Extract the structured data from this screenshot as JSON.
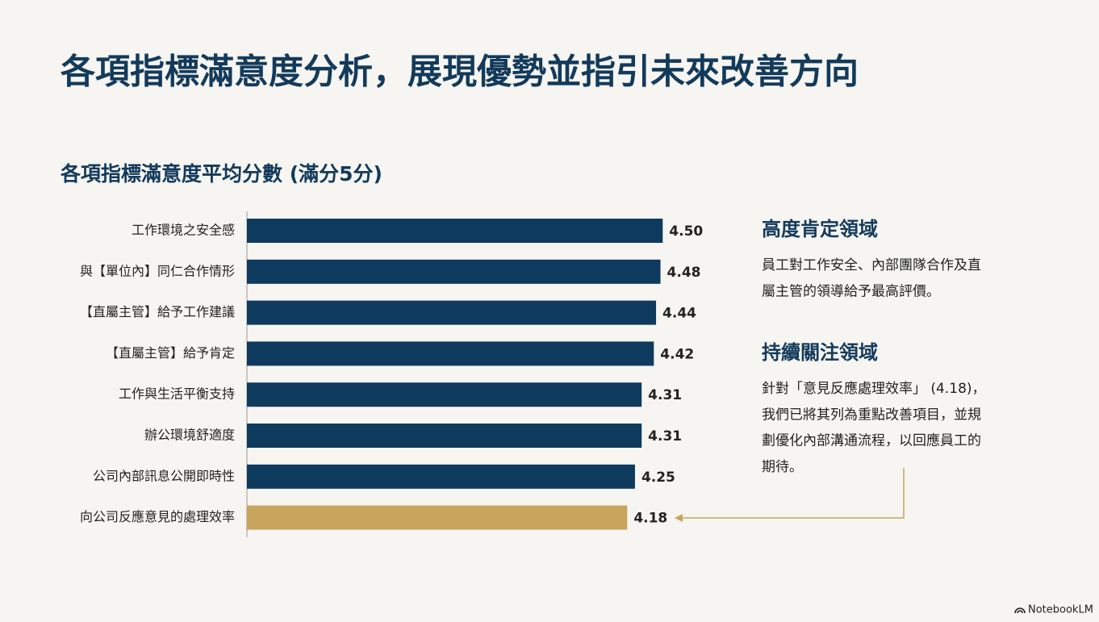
{
  "slide_title": "各項指標滿意度分析，展現優勢並指引未來改善方向",
  "chart_data": {
    "type": "barh",
    "title": "各項指標滿意度平均分數 (滿分5分)",
    "categories": [
      "工作環境之安全感",
      "與【單位內】同仁合作情形",
      "【直屬主管】給予工作建議",
      "【直屬主管】給予肯定",
      "工作與生活平衡支持",
      "辦公環境舒適度",
      "公司內部訊息公開即時性",
      "向公司反應意見的處理效率"
    ],
    "values": [
      4.5,
      4.48,
      4.44,
      4.42,
      4.31,
      4.31,
      4.25,
      4.18
    ],
    "value_labels": [
      "4.50",
      "4.48",
      "4.44",
      "4.42",
      "4.31",
      "4.31",
      "4.25",
      "4.18"
    ],
    "colors": [
      "#0e3a5e",
      "#0e3a5e",
      "#0e3a5e",
      "#0e3a5e",
      "#0e3a5e",
      "#0e3a5e",
      "#0e3a5e",
      "#c9a45c"
    ],
    "xlim": [
      0.75,
      5
    ]
  },
  "panels": [
    {
      "heading": "高度肯定領域",
      "lines": [
        "員工對工作安全、內部團隊合作及直",
        "屬主管的領導給予最高評價。"
      ]
    },
    {
      "heading": "持續關注領域",
      "lines": [
        "針對「意見反應處理效率」 (4.18)，",
        "我們已將其列為重點改善項目，並規",
        "劃優化內部溝通流程，以回應員工的",
        "期待。"
      ]
    }
  ],
  "watermark": "NotebookLM"
}
